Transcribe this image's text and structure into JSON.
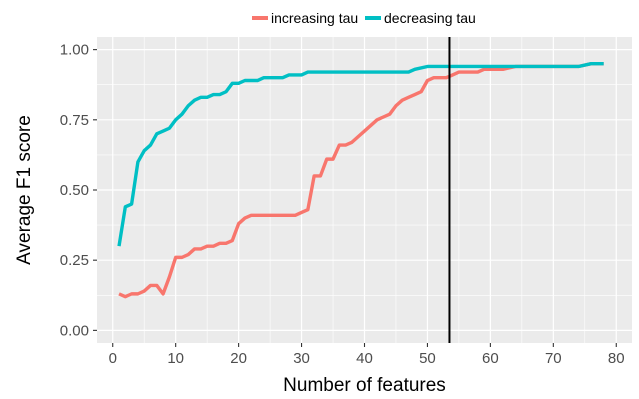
{
  "chart_data": {
    "type": "line",
    "title": "",
    "xlabel": "Number of features",
    "ylabel": "Average F1 score",
    "xlim": [
      -2.5,
      82.5
    ],
    "ylim": [
      -0.045,
      1.045
    ],
    "x_ticks": [
      0,
      10,
      20,
      30,
      40,
      50,
      60,
      70,
      80
    ],
    "x_tick_labels": [
      "0",
      "10",
      "20",
      "30",
      "40",
      "50",
      "60",
      "70",
      "80"
    ],
    "y_ticks": [
      0.0,
      0.25,
      0.5,
      0.75,
      1.0
    ],
    "y_tick_labels": [
      "0.00",
      "0.25",
      "0.50",
      "0.75",
      "1.00"
    ],
    "grid": true,
    "legend_position": "top",
    "vline_x": 53.5,
    "vline_color": "#000000",
    "background": "#ebebeb",
    "series": [
      {
        "name": "increasing tau",
        "color": "#f8766d",
        "points": [
          [
            1,
            0.13
          ],
          [
            2,
            0.12
          ],
          [
            3,
            0.13
          ],
          [
            4,
            0.13
          ],
          [
            5,
            0.14
          ],
          [
            6,
            0.16
          ],
          [
            7,
            0.16
          ],
          [
            8,
            0.13
          ],
          [
            9,
            0.19
          ],
          [
            10,
            0.26
          ],
          [
            11,
            0.26
          ],
          [
            12,
            0.27
          ],
          [
            13,
            0.29
          ],
          [
            14,
            0.29
          ],
          [
            15,
            0.3
          ],
          [
            16,
            0.3
          ],
          [
            17,
            0.31
          ],
          [
            18,
            0.31
          ],
          [
            19,
            0.32
          ],
          [
            20,
            0.38
          ],
          [
            21,
            0.4
          ],
          [
            22,
            0.41
          ],
          [
            23,
            0.41
          ],
          [
            24,
            0.41
          ],
          [
            25,
            0.41
          ],
          [
            26,
            0.41
          ],
          [
            27,
            0.41
          ],
          [
            28,
            0.41
          ],
          [
            29,
            0.41
          ],
          [
            30,
            0.42
          ],
          [
            31,
            0.43
          ],
          [
            32,
            0.55
          ],
          [
            33,
            0.55
          ],
          [
            34,
            0.61
          ],
          [
            35,
            0.61
          ],
          [
            36,
            0.66
          ],
          [
            37,
            0.66
          ],
          [
            38,
            0.67
          ],
          [
            39,
            0.69
          ],
          [
            40,
            0.71
          ],
          [
            41,
            0.73
          ],
          [
            42,
            0.75
          ],
          [
            43,
            0.76
          ],
          [
            44,
            0.77
          ],
          [
            45,
            0.8
          ],
          [
            46,
            0.82
          ],
          [
            47,
            0.83
          ],
          [
            48,
            0.84
          ],
          [
            49,
            0.85
          ],
          [
            50,
            0.89
          ],
          [
            51,
            0.9
          ],
          [
            52,
            0.9
          ],
          [
            53,
            0.9
          ],
          [
            54,
            0.91
          ],
          [
            55,
            0.92
          ],
          [
            56,
            0.92
          ],
          [
            57,
            0.92
          ],
          [
            58,
            0.92
          ],
          [
            59,
            0.93
          ],
          [
            60,
            0.93
          ],
          [
            62,
            0.93
          ],
          [
            64,
            0.94
          ],
          [
            66,
            0.94
          ],
          [
            68,
            0.94
          ],
          [
            70,
            0.94
          ],
          [
            72,
            0.94
          ],
          [
            74,
            0.94
          ],
          [
            76,
            0.95
          ],
          [
            78,
            0.95
          ]
        ]
      },
      {
        "name": "decreasing tau",
        "color": "#00bfc4",
        "points": [
          [
            1,
            0.3
          ],
          [
            2,
            0.44
          ],
          [
            3,
            0.45
          ],
          [
            4,
            0.6
          ],
          [
            5,
            0.64
          ],
          [
            6,
            0.66
          ],
          [
            7,
            0.7
          ],
          [
            8,
            0.71
          ],
          [
            9,
            0.72
          ],
          [
            10,
            0.75
          ],
          [
            11,
            0.77
          ],
          [
            12,
            0.8
          ],
          [
            13,
            0.82
          ],
          [
            14,
            0.83
          ],
          [
            15,
            0.83
          ],
          [
            16,
            0.84
          ],
          [
            17,
            0.84
          ],
          [
            18,
            0.85
          ],
          [
            19,
            0.88
          ],
          [
            20,
            0.88
          ],
          [
            21,
            0.89
          ],
          [
            22,
            0.89
          ],
          [
            23,
            0.89
          ],
          [
            24,
            0.9
          ],
          [
            25,
            0.9
          ],
          [
            26,
            0.9
          ],
          [
            27,
            0.9
          ],
          [
            28,
            0.91
          ],
          [
            29,
            0.91
          ],
          [
            30,
            0.91
          ],
          [
            31,
            0.92
          ],
          [
            32,
            0.92
          ],
          [
            34,
            0.92
          ],
          [
            36,
            0.92
          ],
          [
            38,
            0.92
          ],
          [
            40,
            0.92
          ],
          [
            42,
            0.92
          ],
          [
            44,
            0.92
          ],
          [
            46,
            0.92
          ],
          [
            47,
            0.92
          ],
          [
            48,
            0.93
          ],
          [
            50,
            0.94
          ],
          [
            52,
            0.94
          ],
          [
            54,
            0.94
          ],
          [
            56,
            0.94
          ],
          [
            58,
            0.94
          ],
          [
            60,
            0.94
          ],
          [
            62,
            0.94
          ],
          [
            64,
            0.94
          ],
          [
            66,
            0.94
          ],
          [
            68,
            0.94
          ],
          [
            70,
            0.94
          ],
          [
            72,
            0.94
          ],
          [
            74,
            0.94
          ],
          [
            76,
            0.95
          ],
          [
            78,
            0.95
          ]
        ]
      }
    ]
  }
}
